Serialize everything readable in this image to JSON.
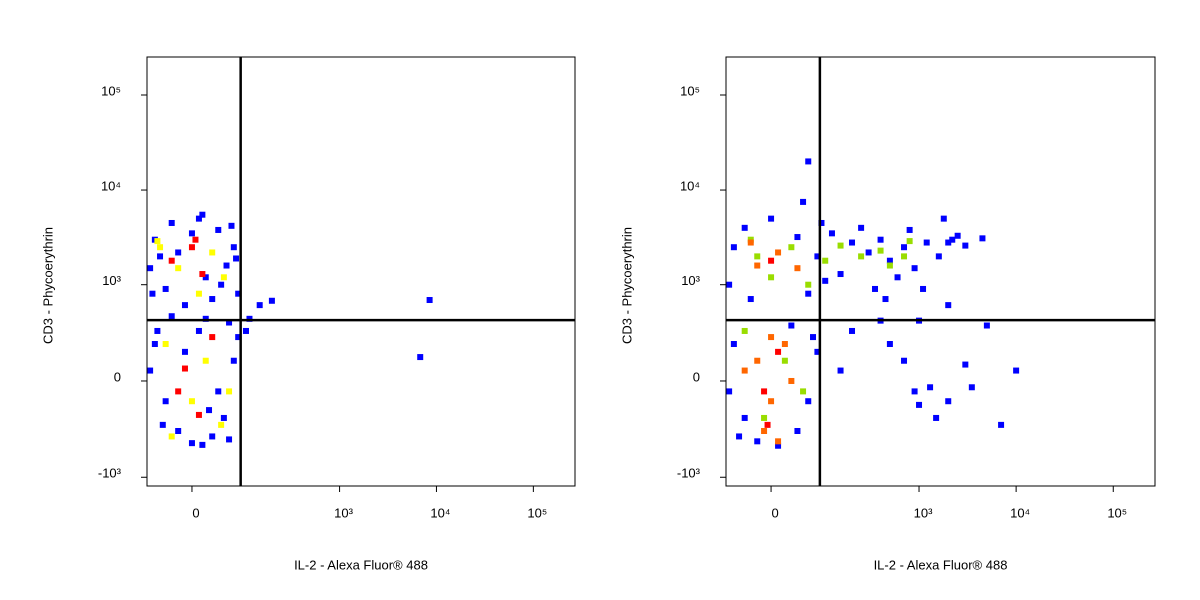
{
  "chart_data": [
    {
      "type": "scatter",
      "xlabel": "IL-2 - Alexa Fluor® 488",
      "ylabel": "CD3 - Phycoerythrin",
      "xscale": "biexponential",
      "yscale": "biexponential",
      "xlim": [
        -77,
        269000
      ],
      "ylim": [
        -1240,
        251000
      ],
      "xticks": [
        0,
        {
          "value": 1000,
          "label": "10³"
        },
        {
          "value": 10000,
          "label": "10⁴"
        },
        {
          "value": 100000,
          "label": "10⁵"
        }
      ],
      "yticks": [
        {
          "value": -1000,
          "label": "-10³"
        },
        0,
        {
          "value": 1000,
          "label": "10³"
        },
        {
          "value": 10000,
          "label": "10⁴"
        },
        {
          "value": 100000,
          "label": "10⁵"
        }
      ],
      "quadrant": {
        "x": 86,
        "y": 406
      },
      "series": [
        {
          "color": "#0000ff",
          "values": [
            [
              -60,
              3000
            ],
            [
              -30,
              4500
            ],
            [
              10,
              5000
            ],
            [
              40,
              3800
            ],
            [
              70,
              2500
            ],
            [
              -70,
              1500
            ],
            [
              -40,
              900
            ],
            [
              20,
              1200
            ],
            [
              55,
              1600
            ],
            [
              80,
              800
            ],
            [
              -20,
              2200
            ],
            [
              30,
              700
            ],
            [
              0,
              3500
            ],
            [
              -50,
              2000
            ],
            [
              65,
              4200
            ],
            [
              -10,
              600
            ],
            [
              45,
              1000
            ],
            [
              -65,
              800
            ],
            [
              15,
              5500
            ],
            [
              75,
              1900
            ],
            [
              -30,
              450
            ],
            [
              20,
              420
            ],
            [
              60,
              380
            ],
            [
              -55,
              300
            ],
            [
              -60,
              200
            ],
            [
              -40,
              -100
            ],
            [
              -20,
              -300
            ],
            [
              0,
              -420
            ],
            [
              30,
              -350
            ],
            [
              50,
              -200
            ],
            [
              70,
              100
            ],
            [
              80,
              250
            ],
            [
              -70,
              50
            ],
            [
              10,
              300
            ],
            [
              40,
              -50
            ],
            [
              -10,
              150
            ],
            [
              25,
              -150
            ],
            [
              -45,
              -250
            ],
            [
              60,
              -380
            ],
            [
              15,
              -440
            ],
            [
              196,
              670
            ],
            [
              144,
              600
            ],
            [
              8500,
              683
            ],
            [
              6800,
              120
            ],
            [
              100,
              300
            ],
            [
              110,
              420
            ]
          ]
        },
        {
          "color": "#ffff00",
          "values": [
            [
              -50,
              2500
            ],
            [
              -20,
              1500
            ],
            [
              30,
              2200
            ],
            [
              10,
              800
            ],
            [
              50,
              1200
            ],
            [
              -40,
              200
            ],
            [
              0,
              -100
            ],
            [
              20,
              100
            ],
            [
              45,
              -250
            ],
            [
              -30,
              -350
            ],
            [
              -55,
              2900
            ],
            [
              60,
              -50
            ]
          ]
        },
        {
          "color": "#ff0000",
          "values": [
            [
              -30,
              1800
            ],
            [
              0,
              2500
            ],
            [
              15,
              1300
            ],
            [
              -10,
              60
            ],
            [
              10,
              -180
            ],
            [
              30,
              250
            ],
            [
              -20,
              -50
            ],
            [
              5,
              3000
            ]
          ]
        }
      ]
    },
    {
      "type": "scatter",
      "xlabel": "IL-2 - Alexa Fluor® 488",
      "ylabel": "CD3 - Phycoerythrin",
      "xscale": "biexponential",
      "yscale": "biexponential",
      "xlim": [
        -77,
        269000
      ],
      "ylim": [
        -1240,
        251000
      ],
      "xticks": [
        0,
        {
          "value": 1000,
          "label": "10³"
        },
        {
          "value": 10000,
          "label": "10⁴"
        },
        {
          "value": 100000,
          "label": "10⁵"
        }
      ],
      "yticks": [
        {
          "value": -1000,
          "label": "-10³"
        },
        0,
        {
          "value": 1000,
          "label": "10³"
        },
        {
          "value": 10000,
          "label": "10⁴"
        },
        {
          "value": 100000,
          "label": "10⁵"
        }
      ],
      "quadrant": {
        "x": 86,
        "y": 406
      },
      "series": [
        {
          "color": "#0000ff",
          "values": [
            [
              -60,
              2500
            ],
            [
              -40,
              4000
            ],
            [
              0,
              5000
            ],
            [
              40,
              3200
            ],
            [
              80,
              2000
            ],
            [
              120,
              3500
            ],
            [
              200,
              2800
            ],
            [
              300,
              2200
            ],
            [
              400,
              3000
            ],
            [
              500,
              1800
            ],
            [
              700,
              2500
            ],
            [
              900,
              1500
            ],
            [
              1200,
              2800
            ],
            [
              1600,
              2000
            ],
            [
              2200,
              3000
            ],
            [
              3000,
              2600
            ],
            [
              4500,
              3100
            ],
            [
              600,
              1200
            ],
            [
              350,
              900
            ],
            [
              150,
              1300
            ],
            [
              250,
              4000
            ],
            [
              800,
              3800
            ],
            [
              1800,
              5000
            ],
            [
              2000,
              2800
            ],
            [
              -70,
              1000
            ],
            [
              -30,
              700
            ],
            [
              60,
              800
            ],
            [
              100,
              1100
            ],
            [
              450,
              700
            ],
            [
              90,
              4500
            ],
            [
              50,
              7500
            ],
            [
              60,
              20000
            ],
            [
              1100,
              900
            ],
            [
              2500,
              3300
            ],
            [
              -60,
              200
            ],
            [
              -40,
              -200
            ],
            [
              -20,
              -400
            ],
            [
              10,
              -450
            ],
            [
              40,
              -300
            ],
            [
              60,
              -100
            ],
            [
              80,
              150
            ],
            [
              -70,
              -50
            ],
            [
              30,
              350
            ],
            [
              -50,
              -350
            ],
            [
              70,
              250
            ],
            [
              200,
              300
            ],
            [
              400,
              400
            ],
            [
              500,
              200
            ],
            [
              700,
              100
            ],
            [
              900,
              -50
            ],
            [
              1000,
              -120
            ],
            [
              1500,
              -200
            ],
            [
              2000,
              -100
            ],
            [
              3000,
              80
            ],
            [
              3500,
              -30
            ],
            [
              5000,
              350
            ],
            [
              7000,
              -250
            ],
            [
              10000,
              50
            ],
            [
              1300,
              -30
            ],
            [
              150,
              50
            ],
            [
              2000,
              600
            ],
            [
              1000,
              400
            ]
          ]
        },
        {
          "color": "#99dd00",
          "values": [
            [
              -20,
              2000
            ],
            [
              30,
              2500
            ],
            [
              100,
              1800
            ],
            [
              250,
              2000
            ],
            [
              500,
              1600
            ],
            [
              150,
              2600
            ],
            [
              400,
              2300
            ],
            [
              700,
              2000
            ],
            [
              0,
              1200
            ],
            [
              -40,
              300
            ],
            [
              20,
              100
            ],
            [
              -10,
              -200
            ],
            [
              50,
              -50
            ],
            [
              -30,
              3000
            ],
            [
              800,
              2900
            ],
            [
              60,
              1000
            ]
          ]
        },
        {
          "color": "#ff6600",
          "values": [
            [
              -20,
              1600
            ],
            [
              10,
              2200
            ],
            [
              40,
              1500
            ],
            [
              -30,
              2800
            ],
            [
              -20,
              100
            ],
            [
              0,
              -100
            ],
            [
              20,
              200
            ],
            [
              -10,
              -300
            ],
            [
              30,
              0
            ],
            [
              -40,
              50
            ],
            [
              10,
              -400
            ],
            [
              0,
              250
            ]
          ]
        },
        {
          "color": "#ff0000",
          "values": [
            [
              0,
              1800
            ],
            [
              -10,
              -50
            ],
            [
              10,
              150
            ],
            [
              -5,
              -250
            ]
          ]
        }
      ]
    }
  ]
}
